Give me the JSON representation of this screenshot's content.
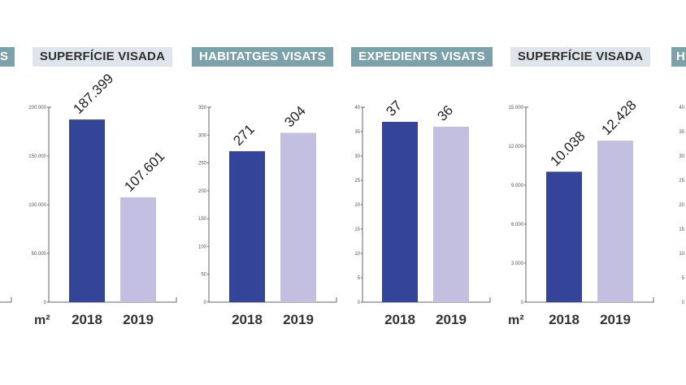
{
  "colors": {
    "bar_2018": "#334499",
    "bar_2019": "#c3bfe0",
    "axis": "#666666",
    "header_light": "#dfe6eb",
    "header_teal": "#7ba1ab"
  },
  "chart_data": [
    {
      "type": "bar",
      "title": "S",
      "partial": "left-edge-cropped",
      "header_style": "teal",
      "categories": [],
      "values": [],
      "ylim": [
        0,
        200000
      ]
    },
    {
      "type": "bar",
      "title": "SUPERFÍCIE VISADA",
      "header_style": "light",
      "unit": "m²",
      "categories": [
        "2018",
        "2019"
      ],
      "values": [
        187399,
        107601
      ],
      "value_labels": [
        "187.399",
        "107.601"
      ],
      "ylim": [
        0,
        200000
      ],
      "yticks": [
        0,
        50000,
        100000,
        150000,
        200000
      ],
      "ytick_labels": [
        "0",
        "50.000",
        "100.000",
        "150.000",
        "200.000"
      ],
      "grid": false
    },
    {
      "type": "bar",
      "title": "HABITATGES VISATS",
      "header_style": "teal",
      "unit": "",
      "categories": [
        "2018",
        "2019"
      ],
      "values": [
        271,
        304
      ],
      "value_labels": [
        "271",
        "304"
      ],
      "ylim": [
        0,
        350
      ],
      "yticks": [
        0,
        50,
        100,
        150,
        200,
        250,
        300,
        350
      ],
      "ytick_labels": [
        "0",
        "50",
        "100",
        "150",
        "200",
        "250",
        "300",
        "350"
      ],
      "grid": false
    },
    {
      "type": "bar",
      "title": "EXPEDIENTS VISATS",
      "header_style": "teal",
      "unit": "",
      "categories": [
        "2018",
        "2019"
      ],
      "values": [
        37,
        36
      ],
      "value_labels": [
        "37",
        "36"
      ],
      "ylim": [
        0,
        40
      ],
      "yticks": [
        0,
        5,
        10,
        15,
        20,
        25,
        30,
        35,
        40
      ],
      "ytick_labels": [
        "0",
        "5",
        "10",
        "15",
        "20",
        "25",
        "30",
        "35",
        "40"
      ],
      "grid": false
    },
    {
      "type": "bar",
      "title": "SUPERFÍCIE VISADA",
      "header_style": "light",
      "unit": "m²",
      "categories": [
        "2018",
        "2019"
      ],
      "values": [
        10038,
        12428
      ],
      "value_labels": [
        "10.038",
        "12.428"
      ],
      "ylim": [
        0,
        15000
      ],
      "yticks": [
        0,
        3000,
        6000,
        9000,
        12000,
        15000
      ],
      "ytick_labels": [
        "0",
        "3.000",
        "6.000",
        "9.000",
        "12.000",
        "15.000"
      ],
      "grid": false
    },
    {
      "type": "bar",
      "title": "H",
      "partial": "right-edge-cropped",
      "header_style": "teal",
      "categories": [],
      "values": [],
      "ylim": [
        0,
        40
      ],
      "yticks": [
        0,
        5,
        10,
        15,
        20,
        25,
        30,
        35,
        40
      ],
      "ytick_labels": [
        "0",
        "5",
        "10",
        "15",
        "20",
        "25",
        "30",
        "35",
        "40"
      ]
    }
  ]
}
